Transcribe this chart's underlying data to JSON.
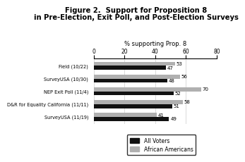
{
  "title_line1": "Figure 2.  Support for Proposition 8",
  "title_line2": "in Pre-Election, Exit Poll, and Post-Election Surveys",
  "xlabel": "% supporting Prop. 8",
  "categories": [
    "Field (10/22)",
    "SurveyUSA (10/30)",
    "NEP Exit Poll (11/4)",
    "D&R for Equality California (11/11)",
    "SurveyUSA (11/19)"
  ],
  "all_voters": [
    47,
    48,
    52,
    51,
    49
  ],
  "african_americans": [
    53,
    56,
    70,
    58,
    41
  ],
  "bar_color_all": "#111111",
  "bar_color_aa": "#b0b0b0",
  "xlim": [
    0,
    80
  ],
  "xticks": [
    0,
    20,
    40,
    60,
    80
  ],
  "legend_labels": [
    "All Voters",
    "African Americans"
  ],
  "bar_height": 0.32,
  "background_color": "#ffffff"
}
